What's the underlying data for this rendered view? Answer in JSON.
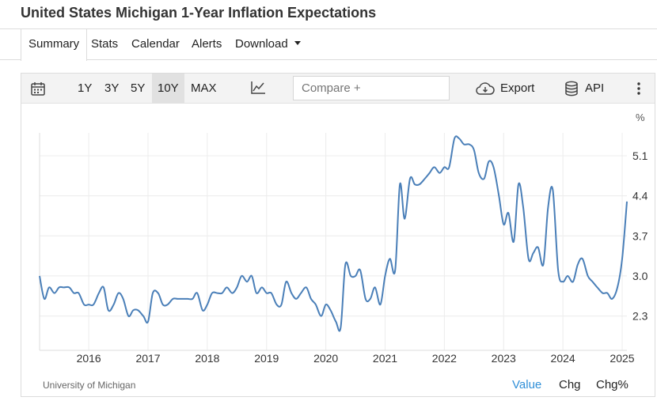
{
  "page": {
    "title": "United States Michigan 1-Year Inflation Expectations"
  },
  "tabs": [
    {
      "label": "Summary",
      "active": true
    },
    {
      "label": "Stats",
      "active": false
    },
    {
      "label": "Calendar",
      "active": false
    },
    {
      "label": "Alerts",
      "active": false
    },
    {
      "label": "Download",
      "active": false
    }
  ],
  "toolbar": {
    "ranges": [
      {
        "label": "1Y",
        "active": false
      },
      {
        "label": "3Y",
        "active": false
      },
      {
        "label": "5Y",
        "active": false
      },
      {
        "label": "10Y",
        "active": true
      },
      {
        "label": "MAX",
        "active": false
      }
    ],
    "compare_placeholder": "Compare +",
    "export_label": "Export",
    "api_label": "API",
    "icons": {
      "calendar": "calendar-icon",
      "chart_type": "line-chart-icon",
      "export": "cloud-download-icon",
      "api": "database-icon",
      "more": "more-vertical-icon"
    }
  },
  "footer": {
    "source": "University of Michigan",
    "value_tab": "Value",
    "chg_tab": "Chg",
    "chgpct_tab": "Chg%"
  },
  "colors": {
    "line": "#4a7fb8",
    "active_tab_text": "#2f8fd8",
    "toolbar_bg": "#f3f3f3"
  },
  "chart_data": {
    "type": "line",
    "title": "",
    "unit_label": "%",
    "xlabel": "",
    "ylabel": "",
    "x_ticks": [
      "2016",
      "2017",
      "2018",
      "2019",
      "2020",
      "2021",
      "2022",
      "2023",
      "2024",
      "2025"
    ],
    "y_ticks": [
      "2.3",
      "3.0",
      "3.7",
      "4.4",
      "5.1"
    ],
    "xlim": [
      2015.17,
      2025.08
    ],
    "ylim": [
      1.7,
      5.5
    ],
    "grid": true,
    "series": [
      {
        "points": [
          [
            2015.17,
            3.0
          ],
          [
            2015.25,
            2.6
          ],
          [
            2015.33,
            2.8
          ],
          [
            2015.42,
            2.7
          ],
          [
            2015.5,
            2.8
          ],
          [
            2015.58,
            2.8
          ],
          [
            2015.67,
            2.8
          ],
          [
            2015.75,
            2.7
          ],
          [
            2015.83,
            2.7
          ],
          [
            2015.92,
            2.5
          ],
          [
            2016.0,
            2.5
          ],
          [
            2016.08,
            2.5
          ],
          [
            2016.17,
            2.7
          ],
          [
            2016.25,
            2.8
          ],
          [
            2016.33,
            2.4
          ],
          [
            2016.42,
            2.5
          ],
          [
            2016.5,
            2.7
          ],
          [
            2016.58,
            2.6
          ],
          [
            2016.67,
            2.3
          ],
          [
            2016.75,
            2.4
          ],
          [
            2016.83,
            2.4
          ],
          [
            2016.92,
            2.3
          ],
          [
            2017.0,
            2.2
          ],
          [
            2017.08,
            2.7
          ],
          [
            2017.17,
            2.7
          ],
          [
            2017.25,
            2.5
          ],
          [
            2017.33,
            2.5
          ],
          [
            2017.42,
            2.6
          ],
          [
            2017.5,
            2.6
          ],
          [
            2017.58,
            2.6
          ],
          [
            2017.67,
            2.6
          ],
          [
            2017.75,
            2.6
          ],
          [
            2017.83,
            2.7
          ],
          [
            2017.92,
            2.4
          ],
          [
            2018.0,
            2.5
          ],
          [
            2018.08,
            2.7
          ],
          [
            2018.17,
            2.7
          ],
          [
            2018.25,
            2.7
          ],
          [
            2018.33,
            2.8
          ],
          [
            2018.42,
            2.7
          ],
          [
            2018.5,
            2.8
          ],
          [
            2018.58,
            3.0
          ],
          [
            2018.67,
            2.9
          ],
          [
            2018.75,
            3.0
          ],
          [
            2018.83,
            2.7
          ],
          [
            2018.92,
            2.8
          ],
          [
            2019.0,
            2.7
          ],
          [
            2019.08,
            2.7
          ],
          [
            2019.17,
            2.5
          ],
          [
            2019.25,
            2.5
          ],
          [
            2019.33,
            2.9
          ],
          [
            2019.42,
            2.7
          ],
          [
            2019.5,
            2.6
          ],
          [
            2019.58,
            2.7
          ],
          [
            2019.67,
            2.8
          ],
          [
            2019.75,
            2.6
          ],
          [
            2019.83,
            2.5
          ],
          [
            2019.92,
            2.3
          ],
          [
            2020.0,
            2.5
          ],
          [
            2020.08,
            2.4
          ],
          [
            2020.17,
            2.2
          ],
          [
            2020.25,
            2.1
          ],
          [
            2020.33,
            3.2
          ],
          [
            2020.42,
            3.0
          ],
          [
            2020.5,
            3.0
          ],
          [
            2020.58,
            3.1
          ],
          [
            2020.67,
            2.6
          ],
          [
            2020.75,
            2.6
          ],
          [
            2020.83,
            2.8
          ],
          [
            2020.92,
            2.5
          ],
          [
            2021.0,
            3.0
          ],
          [
            2021.08,
            3.3
          ],
          [
            2021.17,
            3.1
          ],
          [
            2021.25,
            4.6
          ],
          [
            2021.33,
            4.0
          ],
          [
            2021.42,
            4.7
          ],
          [
            2021.5,
            4.6
          ],
          [
            2021.58,
            4.6
          ],
          [
            2021.67,
            4.7
          ],
          [
            2021.75,
            4.8
          ],
          [
            2021.83,
            4.9
          ],
          [
            2021.92,
            4.8
          ],
          [
            2022.0,
            4.9
          ],
          [
            2022.08,
            4.9
          ],
          [
            2022.17,
            5.4
          ],
          [
            2022.25,
            5.4
          ],
          [
            2022.33,
            5.3
          ],
          [
            2022.42,
            5.3
          ],
          [
            2022.5,
            5.2
          ],
          [
            2022.58,
            4.8
          ],
          [
            2022.67,
            4.7
          ],
          [
            2022.75,
            5.0
          ],
          [
            2022.83,
            4.9
          ],
          [
            2022.92,
            4.4
          ],
          [
            2023.0,
            3.9
          ],
          [
            2023.08,
            4.1
          ],
          [
            2023.17,
            3.6
          ],
          [
            2023.25,
            4.6
          ],
          [
            2023.33,
            4.2
          ],
          [
            2023.42,
            3.3
          ],
          [
            2023.5,
            3.4
          ],
          [
            2023.58,
            3.5
          ],
          [
            2023.67,
            3.2
          ],
          [
            2023.75,
            4.2
          ],
          [
            2023.83,
            4.5
          ],
          [
            2023.92,
            3.1
          ],
          [
            2024.0,
            2.9
          ],
          [
            2024.08,
            3.0
          ],
          [
            2024.17,
            2.9
          ],
          [
            2024.25,
            3.2
          ],
          [
            2024.33,
            3.3
          ],
          [
            2024.42,
            3.0
          ],
          [
            2024.5,
            2.9
          ],
          [
            2024.58,
            2.8
          ],
          [
            2024.67,
            2.7
          ],
          [
            2024.75,
            2.7
          ],
          [
            2024.83,
            2.6
          ],
          [
            2024.92,
            2.8
          ],
          [
            2025.0,
            3.3
          ],
          [
            2025.08,
            4.3
          ]
        ]
      }
    ]
  }
}
